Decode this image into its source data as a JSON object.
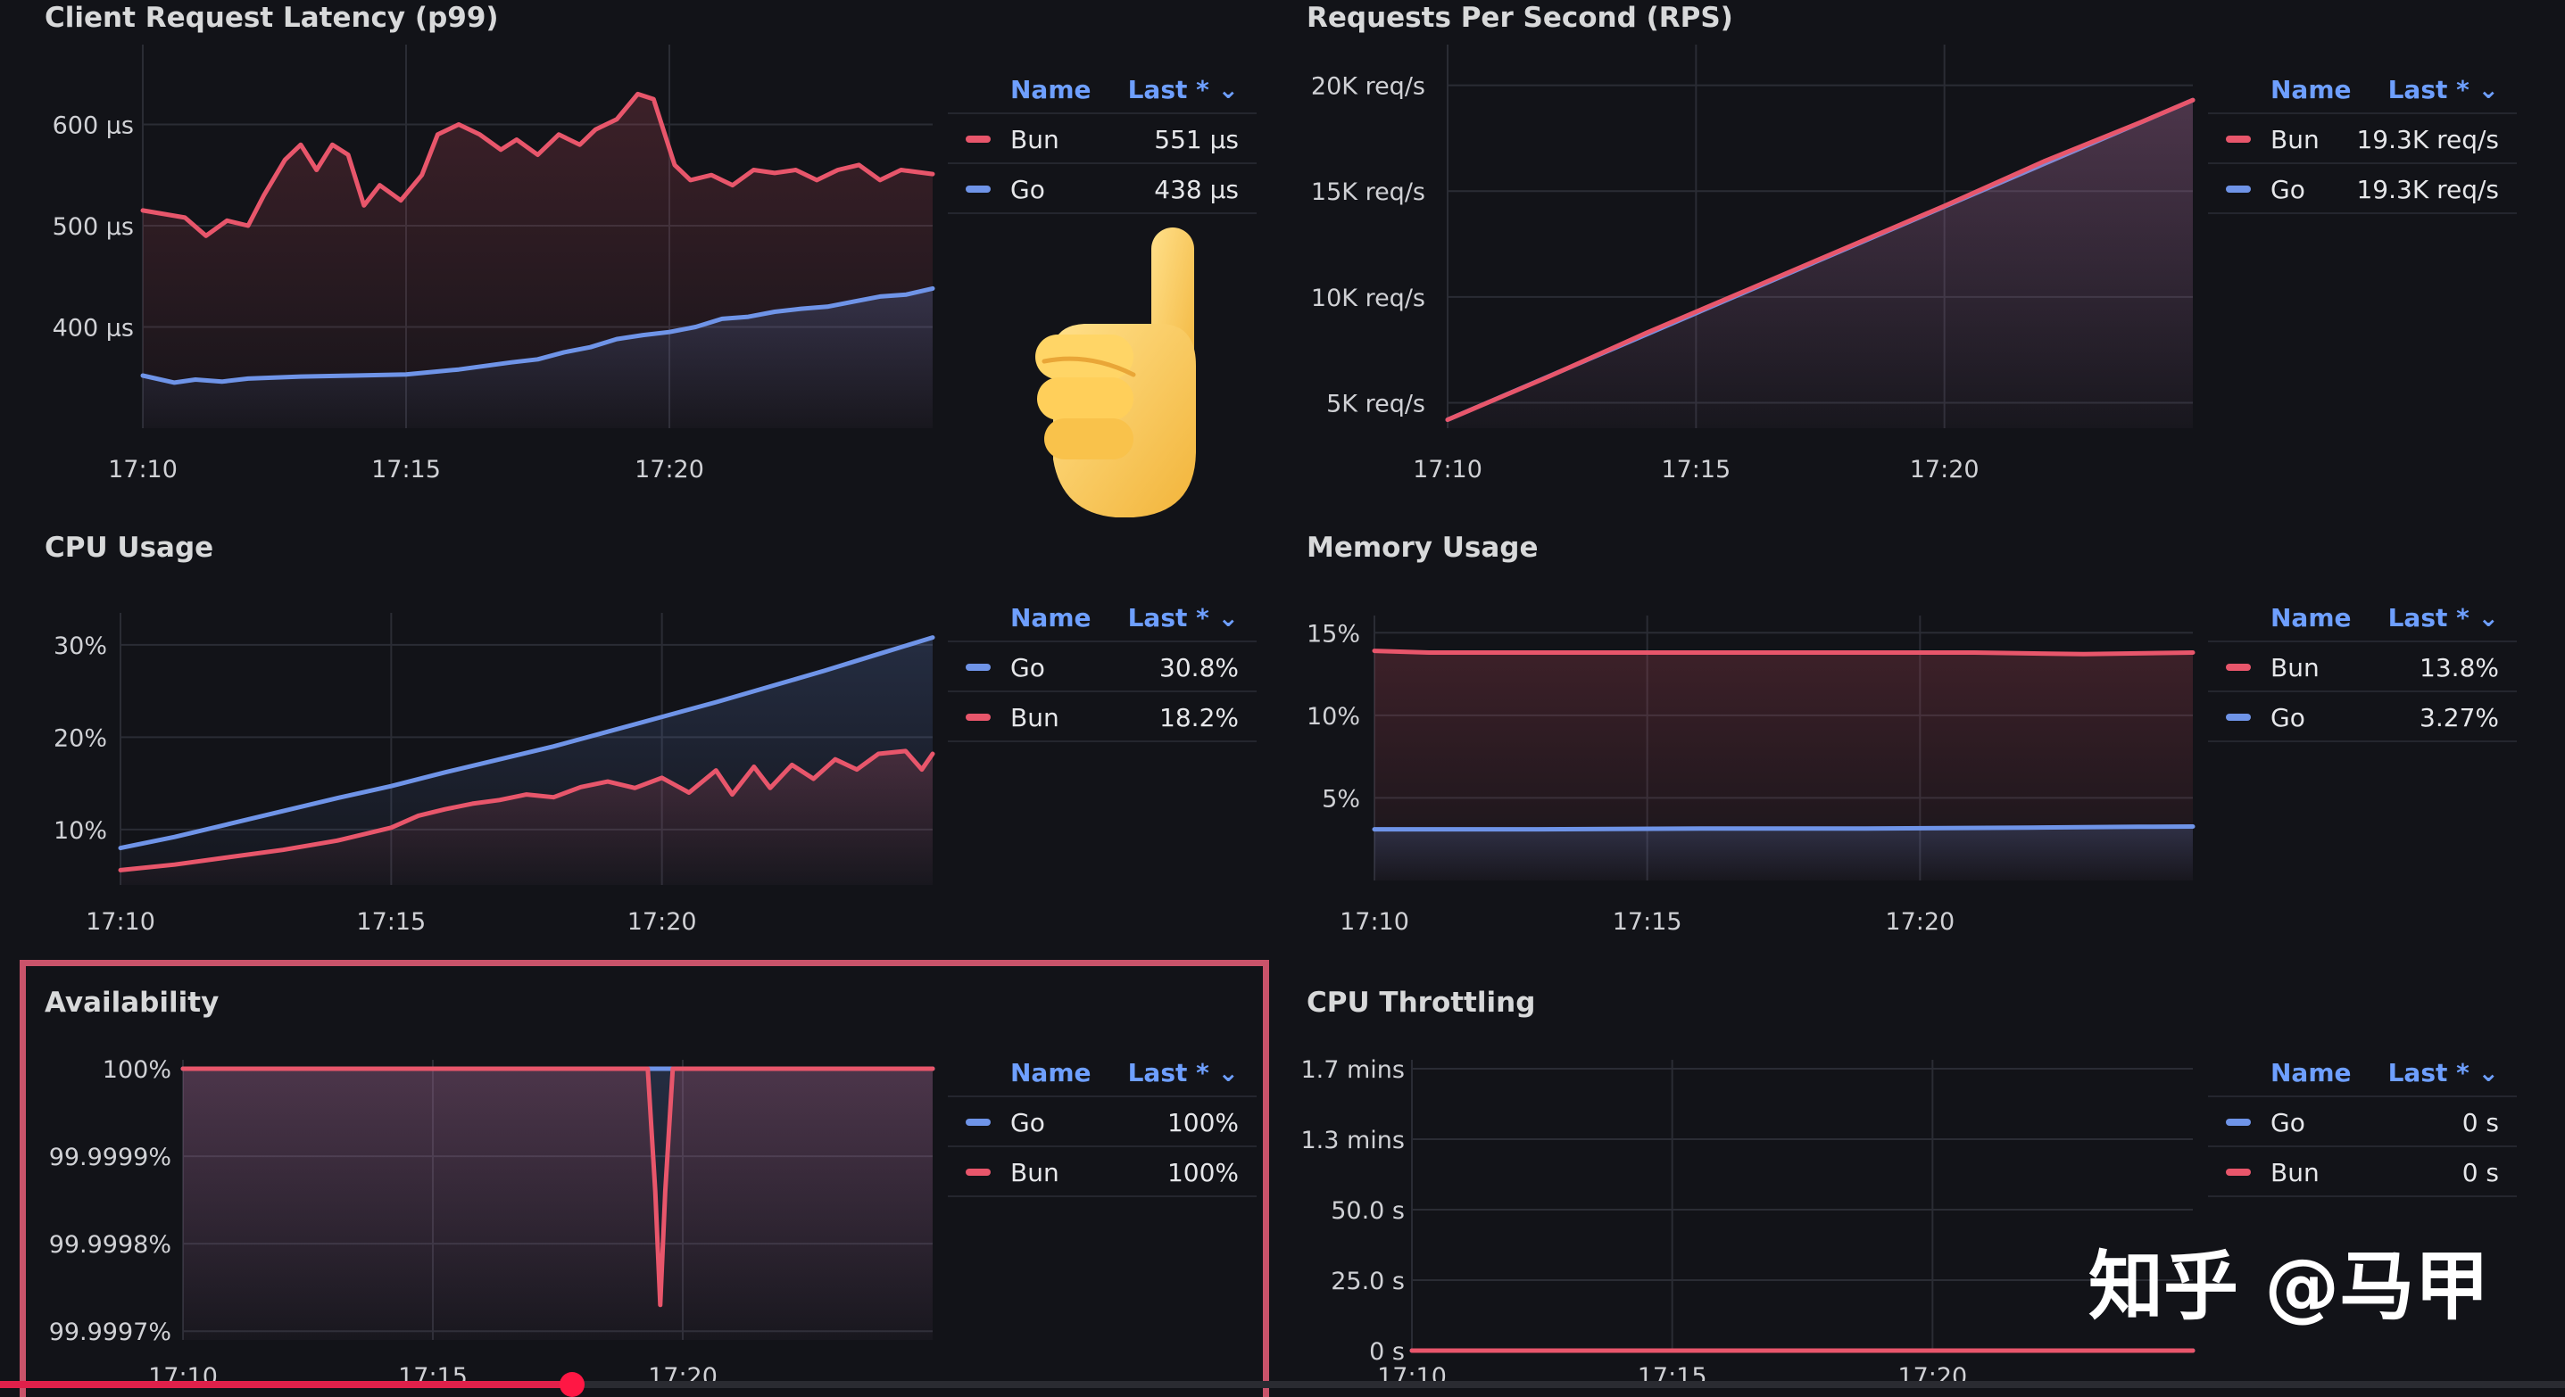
{
  "colors": {
    "red": "#e8566b",
    "blue": "#6f94e8",
    "accent": "#6e9fff",
    "highlight": "#c9536a"
  },
  "panels": [
    {
      "key": "latency",
      "title": "Client Request Latency (p99)",
      "legend": {
        "name_header": "Name",
        "last_header": "Last *",
        "rows": [
          {
            "color": "red",
            "name": "Bun",
            "value": "551 µs"
          },
          {
            "color": "blue",
            "name": "Go",
            "value": "438 µs"
          }
        ]
      }
    },
    {
      "key": "rps",
      "title": "Requests Per Second (RPS)",
      "legend": {
        "name_header": "Name",
        "last_header": "Last *",
        "rows": [
          {
            "color": "red",
            "name": "Bun",
            "value": "19.3K req/s"
          },
          {
            "color": "blue",
            "name": "Go",
            "value": "19.3K req/s"
          }
        ]
      }
    },
    {
      "key": "cpu",
      "title": "CPU Usage",
      "legend": {
        "name_header": "Name",
        "last_header": "Last *",
        "rows": [
          {
            "color": "blue",
            "name": "Go",
            "value": "30.8%"
          },
          {
            "color": "red",
            "name": "Bun",
            "value": "18.2%"
          }
        ]
      }
    },
    {
      "key": "memory",
      "title": "Memory Usage",
      "legend": {
        "name_header": "Name",
        "last_header": "Last *",
        "rows": [
          {
            "color": "red",
            "name": "Bun",
            "value": "13.8%"
          },
          {
            "color": "blue",
            "name": "Go",
            "value": "3.27%"
          }
        ]
      }
    },
    {
      "key": "availability",
      "title": "Availability",
      "legend": {
        "name_header": "Name",
        "last_header": "Last *",
        "rows": [
          {
            "color": "blue",
            "name": "Go",
            "value": "100%"
          },
          {
            "color": "red",
            "name": "Bun",
            "value": "100%"
          }
        ]
      }
    },
    {
      "key": "throttling",
      "title": "CPU Throttling",
      "legend": {
        "name_header": "Name",
        "last_header": "Last *",
        "rows": [
          {
            "color": "blue",
            "name": "Go",
            "value": "0 s"
          },
          {
            "color": "red",
            "name": "Bun",
            "value": "0 s"
          }
        ]
      }
    }
  ],
  "chart_data": [
    {
      "key": "latency",
      "type": "line",
      "title": "Client Request Latency (p99)",
      "x_ticks": [
        "17:10",
        "17:15",
        "17:20"
      ],
      "y_ticks": [
        {
          "label": "600 µs",
          "value": 600
        },
        {
          "label": "500 µs",
          "value": 500
        },
        {
          "label": "400 µs",
          "value": 400
        }
      ],
      "x_range": [
        0,
        15
      ],
      "ylim": [
        300,
        670
      ],
      "area_fill": true,
      "series": [
        {
          "name": "Bun",
          "color": "red",
          "points": [
            [
              0,
              515
            ],
            [
              0.8,
              508
            ],
            [
              1.2,
              490
            ],
            [
              1.6,
              505
            ],
            [
              2,
              500
            ],
            [
              2.3,
              530
            ],
            [
              2.7,
              565
            ],
            [
              3,
              580
            ],
            [
              3.3,
              555
            ],
            [
              3.6,
              580
            ],
            [
              3.9,
              570
            ],
            [
              4.2,
              520
            ],
            [
              4.5,
              540
            ],
            [
              4.9,
              525
            ],
            [
              5.3,
              550
            ],
            [
              5.6,
              590
            ],
            [
              6,
              600
            ],
            [
              6.4,
              590
            ],
            [
              6.8,
              575
            ],
            [
              7.1,
              585
            ],
            [
              7.5,
              570
            ],
            [
              7.9,
              590
            ],
            [
              8.3,
              580
            ],
            [
              8.6,
              595
            ],
            [
              9,
              605
            ],
            [
              9.4,
              630
            ],
            [
              9.7,
              625
            ],
            [
              10.1,
              560
            ],
            [
              10.4,
              545
            ],
            [
              10.8,
              550
            ],
            [
              11.2,
              540
            ],
            [
              11.6,
              555
            ],
            [
              12,
              552
            ],
            [
              12.4,
              555
            ],
            [
              12.8,
              545
            ],
            [
              13.2,
              555
            ],
            [
              13.6,
              560
            ],
            [
              14,
              545
            ],
            [
              14.4,
              555
            ],
            [
              15,
              551
            ]
          ]
        },
        {
          "name": "Go",
          "color": "blue",
          "points": [
            [
              0,
              352
            ],
            [
              0.6,
              345
            ],
            [
              1,
              348
            ],
            [
              1.5,
              346
            ],
            [
              2,
              349
            ],
            [
              3,
              351
            ],
            [
              4,
              352
            ],
            [
              5,
              353
            ],
            [
              6,
              358
            ],
            [
              7,
              365
            ],
            [
              7.5,
              368
            ],
            [
              8,
              375
            ],
            [
              8.5,
              380
            ],
            [
              9,
              388
            ],
            [
              9.5,
              392
            ],
            [
              10,
              395
            ],
            [
              10.5,
              400
            ],
            [
              11,
              408
            ],
            [
              11.5,
              410
            ],
            [
              12,
              415
            ],
            [
              12.5,
              418
            ],
            [
              13,
              420
            ],
            [
              13.5,
              425
            ],
            [
              14,
              430
            ],
            [
              14.5,
              432
            ],
            [
              15,
              438
            ]
          ]
        }
      ]
    },
    {
      "key": "rps",
      "type": "line",
      "title": "Requests Per Second (RPS)",
      "x_ticks": [
        "17:10",
        "17:15",
        "17:20"
      ],
      "y_ticks": [
        {
          "label": "20K req/s",
          "value": 20000
        },
        {
          "label": "15K req/s",
          "value": 15000
        },
        {
          "label": "10K req/s",
          "value": 10000
        },
        {
          "label": "5K req/s",
          "value": 5000
        }
      ],
      "x_range": [
        0,
        15
      ],
      "ylim": [
        3800,
        21500
      ],
      "area_fill": true,
      "series": [
        {
          "name": "Go",
          "color": "blue",
          "points": [
            [
              0,
              4200
            ],
            [
              15,
              19300
            ]
          ]
        },
        {
          "name": "Bun",
          "color": "red",
          "points": [
            [
              0,
              4200
            ],
            [
              2,
              6200
            ],
            [
              4,
              8300
            ],
            [
              6,
              10300
            ],
            [
              8,
              12300
            ],
            [
              10,
              14300
            ],
            [
              12,
              16400
            ],
            [
              14,
              18300
            ],
            [
              15,
              19300
            ]
          ]
        }
      ]
    },
    {
      "key": "cpu",
      "type": "line",
      "title": "CPU Usage",
      "x_ticks": [
        "17:10",
        "17:15",
        "17:20"
      ],
      "y_ticks": [
        {
          "label": "30%",
          "value": 30
        },
        {
          "label": "20%",
          "value": 20
        },
        {
          "label": "10%",
          "value": 10
        }
      ],
      "x_range": [
        0,
        15
      ],
      "ylim": [
        4,
        32.5
      ],
      "area_fill": true,
      "series": [
        {
          "name": "Go",
          "color": "blue",
          "points": [
            [
              0,
              8
            ],
            [
              1,
              9.2
            ],
            [
              2,
              10.6
            ],
            [
              3,
              12
            ],
            [
              4,
              13.4
            ],
            [
              5,
              14.7
            ],
            [
              6,
              16.2
            ],
            [
              7,
              17.6
            ],
            [
              8,
              19
            ],
            [
              9,
              20.6
            ],
            [
              10,
              22.2
            ],
            [
              11,
              23.8
            ],
            [
              12,
              25.5
            ],
            [
              13,
              27.2
            ],
            [
              14,
              29
            ],
            [
              15,
              30.8
            ]
          ]
        },
        {
          "name": "Bun",
          "color": "red",
          "points": [
            [
              0,
              5.6
            ],
            [
              1,
              6.2
            ],
            [
              2,
              7
            ],
            [
              3,
              7.8
            ],
            [
              4,
              8.8
            ],
            [
              5,
              10.2
            ],
            [
              5.5,
              11.5
            ],
            [
              6,
              12.2
            ],
            [
              6.5,
              12.8
            ],
            [
              7,
              13.2
            ],
            [
              7.5,
              13.8
            ],
            [
              8,
              13.5
            ],
            [
              8.5,
              14.6
            ],
            [
              9,
              15.2
            ],
            [
              9.5,
              14.5
            ],
            [
              10,
              15.6
            ],
            [
              10.5,
              14
            ],
            [
              11,
              16.4
            ],
            [
              11.3,
              13.8
            ],
            [
              11.7,
              16.8
            ],
            [
              12,
              14.5
            ],
            [
              12.4,
              17
            ],
            [
              12.8,
              15.5
            ],
            [
              13.2,
              17.6
            ],
            [
              13.6,
              16.5
            ],
            [
              14,
              18.2
            ],
            [
              14.5,
              18.5
            ],
            [
              14.8,
              16.5
            ],
            [
              15,
              18.2
            ]
          ]
        }
      ]
    },
    {
      "key": "memory",
      "type": "line",
      "title": "Memory Usage",
      "x_ticks": [
        "17:10",
        "17:15",
        "17:20"
      ],
      "y_ticks": [
        {
          "label": "15%",
          "value": 15
        },
        {
          "label": "10%",
          "value": 10
        },
        {
          "label": "5%",
          "value": 5
        }
      ],
      "x_range": [
        0,
        15
      ],
      "ylim": [
        0,
        15.5
      ],
      "area_fill": true,
      "series": [
        {
          "name": "Bun",
          "color": "red",
          "points": [
            [
              0,
              13.9
            ],
            [
              1,
              13.8
            ],
            [
              3,
              13.8
            ],
            [
              5,
              13.8
            ],
            [
              7,
              13.8
            ],
            [
              9,
              13.8
            ],
            [
              11,
              13.8
            ],
            [
              13,
              13.7
            ],
            [
              15,
              13.8
            ]
          ]
        },
        {
          "name": "Go",
          "color": "blue",
          "points": [
            [
              0,
              3.1
            ],
            [
              3,
              3.1
            ],
            [
              6,
              3.15
            ],
            [
              9,
              3.15
            ],
            [
              12,
              3.2
            ],
            [
              14,
              3.25
            ],
            [
              15,
              3.27
            ]
          ]
        }
      ]
    },
    {
      "key": "availability",
      "type": "line",
      "title": "Availability",
      "x_ticks": [
        "17:10",
        "17:15",
        "17:20"
      ],
      "y_ticks": [
        {
          "label": "100%",
          "value": 100
        },
        {
          "label": "99.9999%",
          "value": 99.9999
        },
        {
          "label": "99.9998%",
          "value": 99.9998
        },
        {
          "label": "99.9997%",
          "value": 99.9997
        }
      ],
      "x_range": [
        0,
        15
      ],
      "ylim": [
        99.99969,
        100.0
      ],
      "area_fill": true,
      "series": [
        {
          "name": "Go",
          "color": "blue",
          "points": [
            [
              0,
              100
            ],
            [
              15,
              100
            ]
          ]
        },
        {
          "name": "Bun",
          "color": "red",
          "points": [
            [
              0,
              100
            ],
            [
              9.3,
              100
            ],
            [
              9.45,
              99.99986
            ],
            [
              9.55,
              99.99973
            ],
            [
              9.65,
              99.99986
            ],
            [
              9.8,
              100
            ],
            [
              15,
              100
            ]
          ]
        }
      ]
    },
    {
      "key": "throttling",
      "type": "line",
      "title": "CPU Throttling",
      "x_ticks": [
        "17:10",
        "17:15",
        "17:20"
      ],
      "y_ticks": [
        {
          "label": "1.7 mins",
          "value": 100
        },
        {
          "label": "1.3 mins",
          "value": 75
        },
        {
          "label": "50.0 s",
          "value": 50
        },
        {
          "label": "25.0 s",
          "value": 25
        },
        {
          "label": "0 s",
          "value": 0
        }
      ],
      "x_range": [
        0,
        15
      ],
      "ylim": [
        0,
        100
      ],
      "area_fill": false,
      "series": [
        {
          "name": "Go",
          "color": "blue",
          "points": [
            [
              0,
              0
            ],
            [
              15,
              0
            ]
          ]
        },
        {
          "name": "Bun",
          "color": "red",
          "points": [
            [
              0,
              0
            ],
            [
              15,
              0
            ]
          ]
        }
      ]
    }
  ],
  "watermark": {
    "text": "知乎 @马甲"
  },
  "video_progress": {
    "fraction": 0.223
  }
}
